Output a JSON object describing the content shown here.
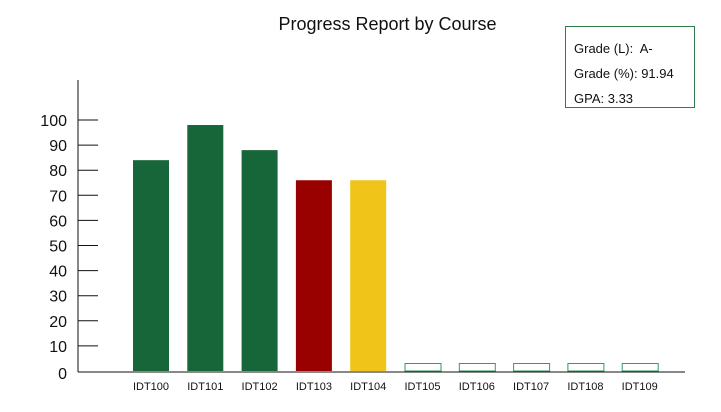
{
  "chart_data": {
    "type": "bar",
    "title": "Progress Report by Course",
    "categories": [
      "IDT100",
      "IDT101",
      "IDT102",
      "IDT103",
      "IDT104",
      "IDT105",
      "IDT106",
      "IDT107",
      "IDT108",
      "IDT109"
    ],
    "values": [
      84,
      98,
      88,
      76,
      76,
      0,
      0,
      0,
      0,
      0
    ],
    "bar_colors": [
      "#17663a",
      "#17663a",
      "#17663a",
      "#990000",
      "#f0c419",
      "#ffffff",
      "#ffffff",
      "#ffffff",
      "#ffffff",
      "#ffffff"
    ],
    "empty_bar_outline": "#2e9e5b",
    "yticks": [
      0,
      10,
      20,
      30,
      40,
      50,
      60,
      70,
      80,
      90,
      100
    ],
    "ylim": [
      0,
      100
    ],
    "xlabel": "",
    "ylabel": "",
    "grid": false
  },
  "summary": {
    "grade_letter_label": "Grade (L):",
    "grade_letter_value": "A-",
    "grade_percent_label": "Grade (%):",
    "grade_percent_value": "91.94",
    "gpa_label": "GPA:",
    "gpa_value": "3.33"
  },
  "colors": {
    "axis": "#111111",
    "box_border": "#2e7d4a"
  }
}
